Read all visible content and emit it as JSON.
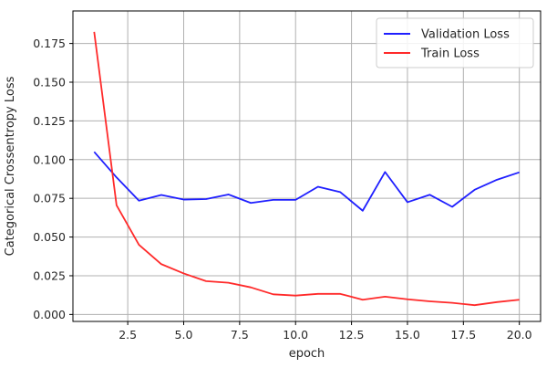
{
  "chart_data": {
    "type": "line",
    "title": "",
    "xlabel": "epoch",
    "ylabel": "Categorical Crossentropy Loss",
    "xlim": [
      0.05,
      20.95
    ],
    "ylim": [
      -0.0045,
      0.196
    ],
    "grid": true,
    "legend_position": "top-right",
    "x": [
      1,
      2,
      3,
      4,
      5,
      6,
      7,
      8,
      9,
      10,
      11,
      12,
      13,
      14,
      15,
      16,
      17,
      18,
      19,
      20
    ],
    "xticks": [
      2.5,
      5.0,
      7.5,
      10.0,
      12.5,
      15.0,
      17.5,
      20.0
    ],
    "xtick_labels": [
      "2.5",
      "5.0",
      "7.5",
      "10.0",
      "12.5",
      "15.0",
      "17.5",
      "20.0"
    ],
    "yticks": [
      0.0,
      0.025,
      0.05,
      0.075,
      0.1,
      0.125,
      0.15,
      0.175
    ],
    "ytick_labels": [
      "0.000",
      "0.025",
      "0.050",
      "0.075",
      "0.100",
      "0.125",
      "0.150",
      "0.175"
    ],
    "series": [
      {
        "name": "Validation Loss",
        "color": "#1f1fff",
        "values": [
          0.105,
          0.0885,
          0.0735,
          0.0772,
          0.0742,
          0.0745,
          0.0775,
          0.072,
          0.074,
          0.074,
          0.0825,
          0.079,
          0.067,
          0.092,
          0.0725,
          0.0773,
          0.0695,
          0.0805,
          0.087,
          0.0918
        ]
      },
      {
        "name": "Train Loss",
        "color": "#ff2a2a",
        "values": [
          0.1825,
          0.0705,
          0.045,
          0.0325,
          0.0265,
          0.0215,
          0.0205,
          0.0175,
          0.013,
          0.0122,
          0.0133,
          0.0133,
          0.0095,
          0.0115,
          0.0098,
          0.0085,
          0.0075,
          0.006,
          0.008,
          0.0095
        ]
      }
    ]
  }
}
